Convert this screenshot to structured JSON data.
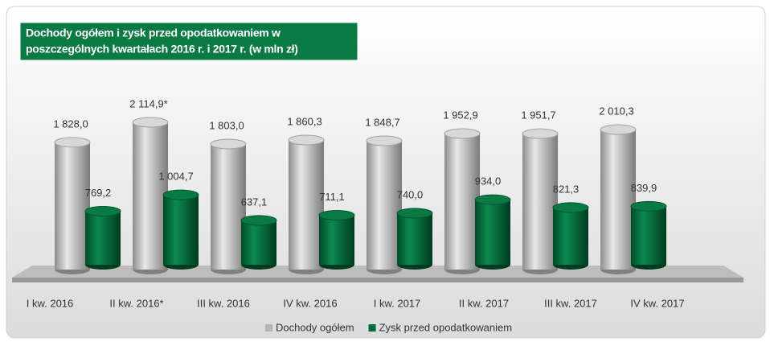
{
  "chart_data": {
    "type": "bar3d",
    "title": [
      "Dochody ogółem i zysk przed opodatkowaniem w",
      "poszczególnych kwartałach  2016 r. i  2017 r. (w mln zł)"
    ],
    "categories": [
      "I kw. 2016",
      "II kw. 2016*",
      "III kw. 2016",
      "IV kw. 2016",
      "I kw. 2017",
      "II kw. 2017",
      "III kw. 2017",
      "IV kw. 2017"
    ],
    "series": [
      {
        "name": "Dochody ogółem",
        "color": "#b4b4b4",
        "values": [
          1828.0,
          2114.9,
          1803.0,
          1860.3,
          1848.7,
          1952.9,
          1951.7,
          2010.3
        ],
        "value_labels": [
          "1 828,0",
          "2 114,9*",
          "1 803,0",
          "1 860,3",
          "1 848,7",
          "1 952,9",
          "1 951,7",
          "2 010,3"
        ]
      },
      {
        "name": "Zysk przed opodatkowaniem",
        "color": "#006b3c",
        "values": [
          769.2,
          1004.7,
          637.1,
          711.1,
          740.0,
          934.0,
          821.3,
          839.9
        ],
        "value_labels": [
          "769,2",
          "1 004,7",
          "637,1",
          "711,1",
          "740,0",
          "934,0",
          "821,3",
          "839,9"
        ]
      }
    ],
    "legend": "bottom"
  }
}
